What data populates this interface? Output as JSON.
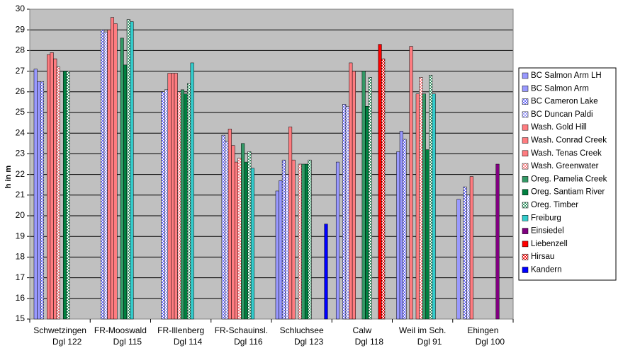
{
  "chart_data": {
    "type": "bar",
    "y_label": "h in m",
    "categories": [
      "Schwetzingen",
      "FR-Mooswald",
      "FR-Illenberg",
      "FR-Schauinsl.",
      "Schluchsee",
      "Calw",
      "Weil im Sch.",
      "Ehingen"
    ],
    "category_codes": [
      "Dgl 122",
      "Dgl 115",
      "Dgl 114",
      "Dgl 116",
      "Dgl 123",
      "Dgl 118",
      "Dgl 91",
      "Dgl 100"
    ],
    "ylim": [
      15,
      30
    ],
    "yticks": [
      15,
      16,
      17,
      18,
      19,
      20,
      21,
      22,
      23,
      24,
      25,
      26,
      27,
      28,
      29,
      30
    ],
    "grid": true,
    "legend": "right",
    "series": [
      {
        "name": "BC Salmon Arm LH",
        "color": "#9999ff",
        "pattern": "solid",
        "values": [
          27.1,
          null,
          null,
          null,
          21.2,
          22.6,
          23.1,
          20.8
        ]
      },
      {
        "name": "BC Salmon Arm",
        "color": "#9999ff",
        "pattern": "solid",
        "values": [
          26.5,
          null,
          null,
          null,
          21.7,
          null,
          24.1,
          null
        ]
      },
      {
        "name": "BC Cameron Lake",
        "color": "#6666ff",
        "pattern": "checker",
        "values": [
          26.5,
          29.0,
          26.0,
          23.9,
          22.7,
          25.4,
          23.7,
          21.4
        ]
      },
      {
        "name": "BC Duncan Paldi",
        "color": "#9999ff",
        "pattern": "checker",
        "values": [
          null,
          28.9,
          26.1,
          23.6,
          22.0,
          25.3,
          null,
          21.0
        ]
      },
      {
        "name": "Wash. Gold Hill",
        "color": "#ff7c80",
        "pattern": "solid",
        "values": [
          27.8,
          29.0,
          26.9,
          24.2,
          24.3,
          27.4,
          28.2,
          21.9
        ]
      },
      {
        "name": "Wash. Conrad Creek",
        "color": "#ff7c80",
        "pattern": "solid",
        "values": [
          27.9,
          29.6,
          26.9,
          23.4,
          22.7,
          27.0,
          null,
          null
        ]
      },
      {
        "name": "Wash. Tenas Creek",
        "color": "#ff7c80",
        "pattern": "solid",
        "values": [
          27.6,
          29.3,
          26.9,
          22.6,
          null,
          null,
          25.9,
          null
        ]
      },
      {
        "name": "Wash. Greenwater",
        "color": "#ff7c80",
        "pattern": "checker",
        "values": [
          27.2,
          null,
          26.0,
          22.8,
          22.5,
          null,
          26.7,
          null
        ]
      },
      {
        "name": "Oreg. Pamelia Creek",
        "color": "#339966",
        "pattern": "solid",
        "values": [
          null,
          28.6,
          26.1,
          23.5,
          22.5,
          27.0,
          25.9,
          null
        ]
      },
      {
        "name": "Oreg. Santiam River",
        "color": "#008040",
        "pattern": "solid",
        "values": [
          27.0,
          27.3,
          25.9,
          22.6,
          22.5,
          25.3,
          23.2,
          null
        ]
      },
      {
        "name": "Oreg. Timber",
        "color": "#339966",
        "pattern": "checker",
        "values": [
          27.0,
          29.5,
          26.4,
          23.1,
          22.7,
          26.7,
          26.8,
          null
        ]
      },
      {
        "name": "Freiburg",
        "color": "#33cccc",
        "pattern": "solid",
        "values": [
          null,
          29.4,
          27.4,
          22.3,
          null,
          null,
          25.9,
          null
        ]
      },
      {
        "name": "Einsiedel",
        "color": "#800080",
        "pattern": "solid",
        "values": [
          null,
          null,
          null,
          null,
          null,
          null,
          null,
          22.5
        ]
      },
      {
        "name": "Liebenzell",
        "color": "#ff0000",
        "pattern": "solid",
        "values": [
          null,
          null,
          null,
          null,
          null,
          28.3,
          null,
          null
        ]
      },
      {
        "name": "Hirsau",
        "color": "#ff0000",
        "pattern": "checker",
        "values": [
          null,
          null,
          null,
          null,
          null,
          27.6,
          null,
          null
        ]
      },
      {
        "name": "Kandern",
        "color": "#0000ff",
        "pattern": "solid",
        "values": [
          null,
          null,
          null,
          null,
          19.6,
          null,
          null,
          null
        ]
      }
    ]
  }
}
